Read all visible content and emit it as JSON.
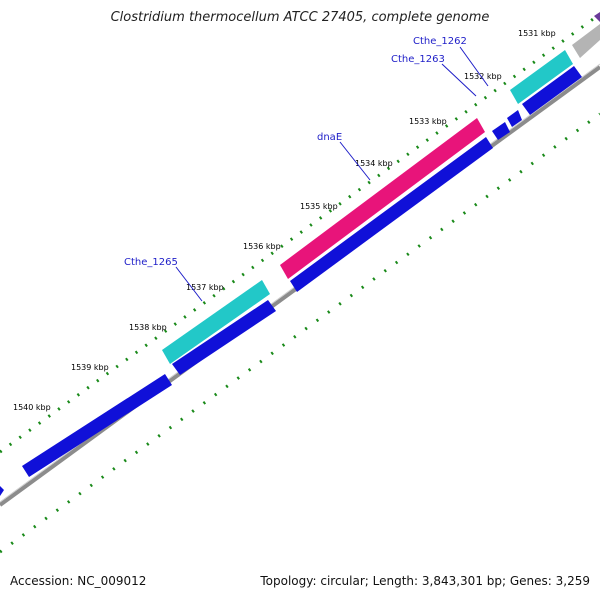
{
  "title": "Clostridium thermocellum ATCC 27405, complete genome",
  "accession": "Accession: NC_009012",
  "summary": "Topology: circular; Length: 3,843,301 bp; Genes: 3,259",
  "ticks": [
    "1531 kbp",
    "1532 kbp",
    "1533 kbp",
    "1534 kbp",
    "1535 kbp",
    "1536 kbp",
    "1537 kbp",
    "1538 kbp",
    "1539 kbp",
    "1540 kbp"
  ],
  "gene_labels": [
    "Cthe_1262",
    "Cthe_1263",
    "dnaE",
    "Cthe_1265"
  ],
  "colors": {
    "backbone": "#8c8c8c",
    "cds_forward": "#1010d8",
    "cds_highlight_teal": "#22c8c8",
    "cds_highlight_pink": "#e8147a",
    "cds_other": "#b4b4b4",
    "gc_ticks": "#1a8a1a",
    "label": "#1e1ec8"
  }
}
